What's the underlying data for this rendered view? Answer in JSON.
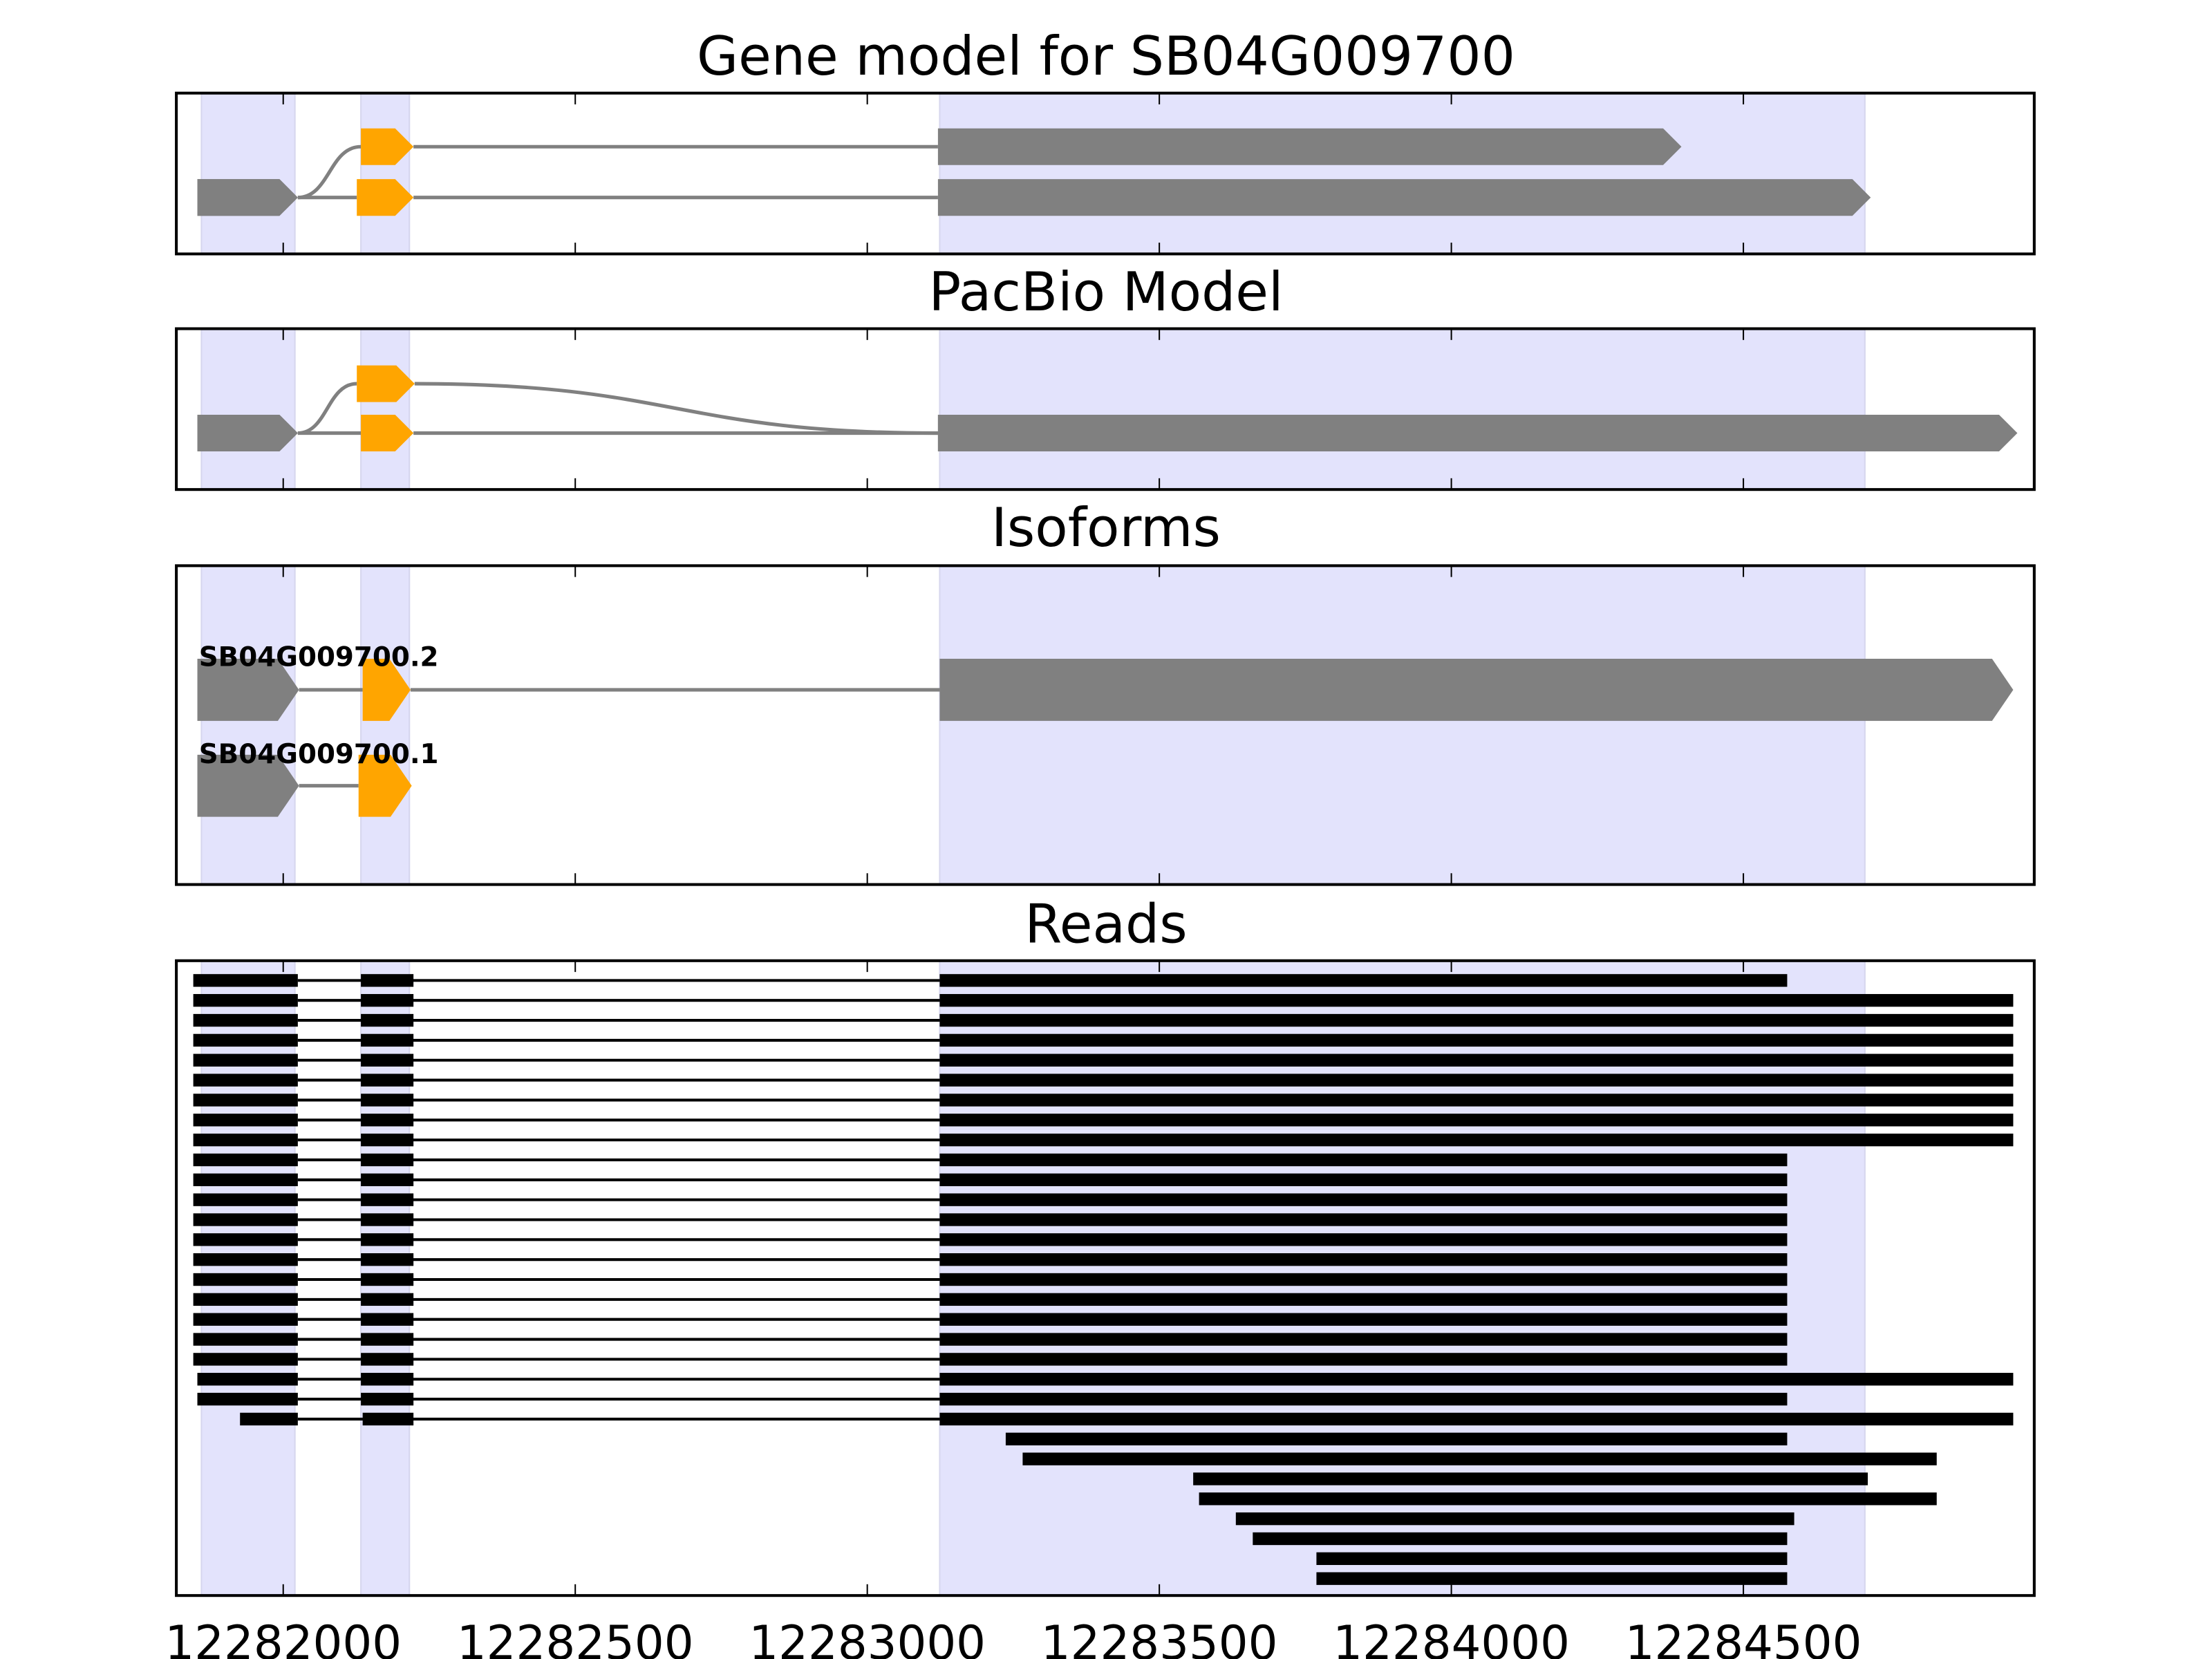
{
  "chart_data": {
    "type": "gene-track",
    "xlim": [
      12281817,
      12284998
    ],
    "xticks": [
      12282000,
      12282500,
      12283000,
      12283500,
      12284000,
      12284500
    ],
    "xtick_labels": [
      "12282000",
      "12282500",
      "12283000",
      "12283500",
      "12284000",
      "12284500"
    ],
    "colors": {
      "exon": "#808080",
      "cds": "#FFA500",
      "intron": "#808080",
      "read": "#000000",
      "shade": "#e3e3fc",
      "frame": "#000000"
    },
    "shaded_regions": [
      [
        12281860,
        12282020
      ],
      [
        12282133,
        12282216
      ],
      [
        12283124,
        12284708
      ]
    ],
    "panels": [
      {
        "title": "Gene model for SB04G009700",
        "rows": 2,
        "transcripts": [
          {
            "exons": [
              {
                "start": 12281853,
                "end": 12282025,
                "row": 1,
                "kind": "exon"
              },
              {
                "start": 12282133,
                "end": 12282223,
                "row": 0,
                "kind": "cds"
              },
              {
                "start": 12283121,
                "end": 12284394,
                "row": 0,
                "kind": "exon"
              }
            ]
          },
          {
            "exons": [
              {
                "start": 12281853,
                "end": 12282025,
                "row": 1,
                "kind": "exon"
              },
              {
                "start": 12282126,
                "end": 12282223,
                "row": 1,
                "kind": "cds"
              },
              {
                "start": 12283121,
                "end": 12284718,
                "row": 1,
                "kind": "exon"
              }
            ]
          }
        ]
      },
      {
        "title": "PacBio Model",
        "rows": 2,
        "transcripts": [
          {
            "exons": [
              {
                "start": 12281853,
                "end": 12282025,
                "row": 1,
                "kind": "exon"
              },
              {
                "start": 12282126,
                "end": 12282225,
                "row": 0,
                "kind": "cds"
              },
              {
                "start": 12283121,
                "end": 12284969,
                "row": 1,
                "kind": "exon"
              }
            ]
          },
          {
            "exons": [
              {
                "start": 12281853,
                "end": 12282025,
                "row": 1,
                "kind": "exon"
              },
              {
                "start": 12282133,
                "end": 12282223,
                "row": 1,
                "kind": "cds"
              },
              {
                "start": 12283121,
                "end": 12284969,
                "row": 1,
                "kind": "exon"
              }
            ]
          }
        ]
      },
      {
        "title": "Isoforms",
        "rows": 2,
        "transcripts": [
          {
            "label": "SB04G009700.2",
            "exons": [
              {
                "start": 12281853,
                "end": 12282027,
                "row": 0,
                "kind": "exon"
              },
              {
                "start": 12282136,
                "end": 12282218,
                "row": 0,
                "kind": "cds"
              },
              {
                "start": 12283124,
                "end": 12284962,
                "row": 0,
                "kind": "exon"
              }
            ]
          },
          {
            "label": "SB04G009700.1",
            "exons": [
              {
                "start": 12281853,
                "end": 12282027,
                "row": 1,
                "kind": "exon"
              },
              {
                "start": 12282129,
                "end": 12282220,
                "row": 1,
                "kind": "cds"
              }
            ]
          }
        ]
      },
      {
        "title": "Reads",
        "reads": [
          [
            [
              12281846,
              12282025
            ],
            [
              12282133,
              12282223
            ],
            [
              12283124,
              12284575
            ]
          ],
          [
            [
              12281846,
              12282025
            ],
            [
              12282133,
              12282223
            ],
            [
              12283124,
              12284962
            ]
          ],
          [
            [
              12281846,
              12282025
            ],
            [
              12282133,
              12282223
            ],
            [
              12283124,
              12284962
            ]
          ],
          [
            [
              12281846,
              12282025
            ],
            [
              12282133,
              12282223
            ],
            [
              12283124,
              12284962
            ]
          ],
          [
            [
              12281846,
              12282025
            ],
            [
              12282133,
              12282223
            ],
            [
              12283124,
              12284962
            ]
          ],
          [
            [
              12281846,
              12282025
            ],
            [
              12282133,
              12282223
            ],
            [
              12283124,
              12284962
            ]
          ],
          [
            [
              12281846,
              12282025
            ],
            [
              12282133,
              12282223
            ],
            [
              12283124,
              12284962
            ]
          ],
          [
            [
              12281846,
              12282025
            ],
            [
              12282133,
              12282223
            ],
            [
              12283124,
              12284962
            ]
          ],
          [
            [
              12281846,
              12282025
            ],
            [
              12282133,
              12282223
            ],
            [
              12283124,
              12284962
            ]
          ],
          [
            [
              12281846,
              12282025
            ],
            [
              12282133,
              12282223
            ],
            [
              12283124,
              12284575
            ]
          ],
          [
            [
              12281846,
              12282025
            ],
            [
              12282133,
              12282223
            ],
            [
              12283124,
              12284575
            ]
          ],
          [
            [
              12281846,
              12282025
            ],
            [
              12282133,
              12282223
            ],
            [
              12283124,
              12284575
            ]
          ],
          [
            [
              12281846,
              12282025
            ],
            [
              12282133,
              12282223
            ],
            [
              12283124,
              12284575
            ]
          ],
          [
            [
              12281846,
              12282025
            ],
            [
              12282133,
              12282223
            ],
            [
              12283124,
              12284575
            ]
          ],
          [
            [
              12281846,
              12282025
            ],
            [
              12282133,
              12282223
            ],
            [
              12283124,
              12284575
            ]
          ],
          [
            [
              12281846,
              12282025
            ],
            [
              12282133,
              12282223
            ],
            [
              12283124,
              12284575
            ]
          ],
          [
            [
              12281846,
              12282025
            ],
            [
              12282133,
              12282223
            ],
            [
              12283124,
              12284575
            ]
          ],
          [
            [
              12281846,
              12282025
            ],
            [
              12282133,
              12282223
            ],
            [
              12283124,
              12284575
            ]
          ],
          [
            [
              12281846,
              12282025
            ],
            [
              12282133,
              12282223
            ],
            [
              12283124,
              12284575
            ]
          ],
          [
            [
              12281846,
              12282025
            ],
            [
              12282133,
              12282223
            ],
            [
              12283124,
              12284575
            ]
          ],
          [
            [
              12281853,
              12282025
            ],
            [
              12282133,
              12282223
            ],
            [
              12283124,
              12284962
            ]
          ],
          [
            [
              12281853,
              12282025
            ],
            [
              12282133,
              12282223
            ],
            [
              12283124,
              12284575
            ]
          ],
          [
            [
              12281926,
              12282025
            ],
            [
              12282136,
              12282223
            ],
            [
              12283124,
              12284962
            ]
          ],
          [
            [
              12283237,
              12284575
            ]
          ],
          [
            [
              12283266,
              12284831
            ]
          ],
          [
            [
              12283558,
              12284713
            ]
          ],
          [
            [
              12283568,
              12284831
            ]
          ],
          [
            [
              12283631,
              12284587
            ]
          ],
          [
            [
              12283660,
              12284575
            ]
          ],
          [
            [
              12283769,
              12284575
            ]
          ],
          [
            [
              12283769,
              12284575
            ]
          ]
        ]
      }
    ]
  }
}
